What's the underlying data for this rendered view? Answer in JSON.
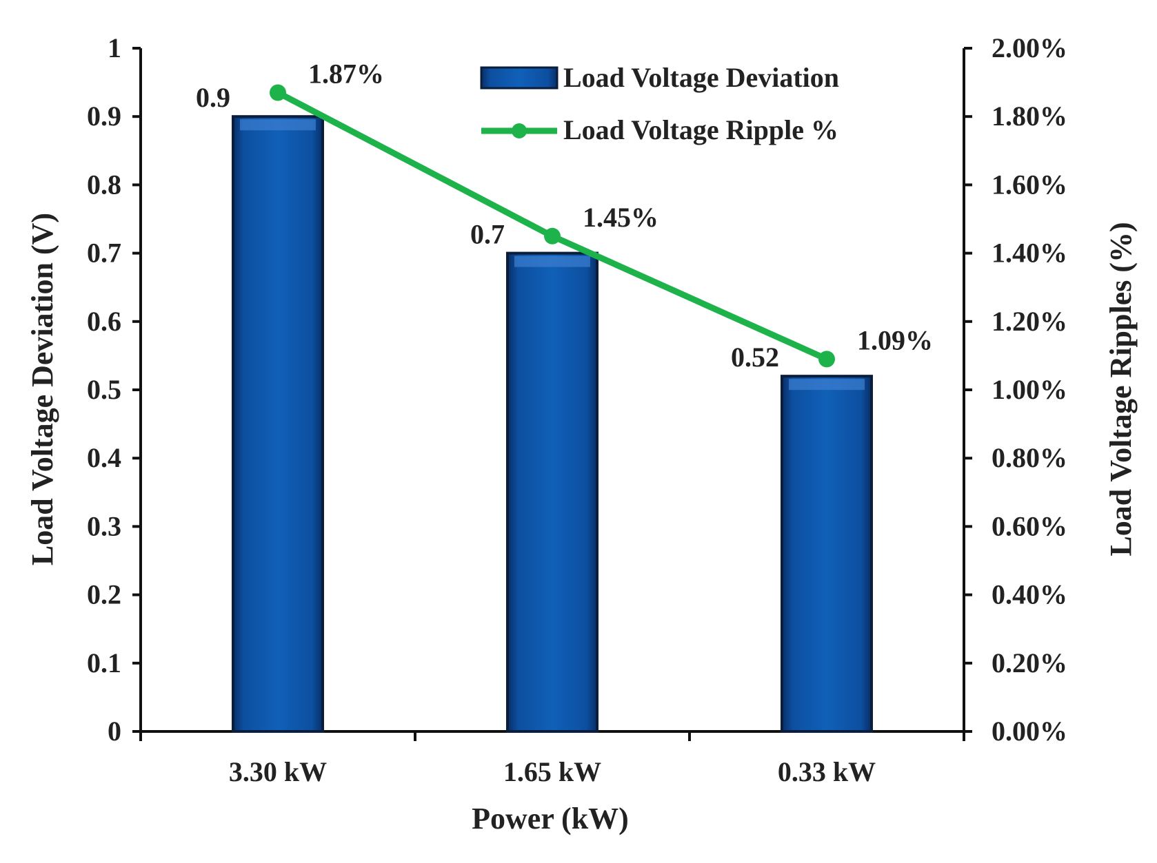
{
  "chart_data": {
    "type": "bar",
    "categories": [
      "3.30 kW",
      "1.65 kW",
      "0.33 kW"
    ],
    "series": [
      {
        "name": "Load Voltage Deviation",
        "kind": "bar",
        "axis": "left",
        "values": [
          0.9,
          0.7,
          0.52
        ],
        "value_labels": [
          "0.9",
          "0.7",
          "0.52"
        ],
        "color": "#0b4f9c"
      },
      {
        "name": "Load Voltage Ripple %",
        "kind": "line",
        "axis": "right",
        "values": [
          1.87,
          1.45,
          1.09
        ],
        "value_labels": [
          "1.87%",
          "1.45%",
          "1.09%"
        ],
        "color": "#1db34a"
      }
    ],
    "xlabel": "Power (kW)",
    "ylabel": "Load Voltage Deviation (V)",
    "y2label": "Load Voltage Ripples (%)",
    "ylim": [
      0,
      1
    ],
    "y2lim": [
      0,
      2
    ],
    "yticks": [
      "0",
      "0.1",
      "0.2",
      "0.3",
      "0.4",
      "0.5",
      "0.6",
      "0.7",
      "0.8",
      "0.9",
      "1"
    ],
    "y2ticks": [
      "0.00%",
      "0.20%",
      "0.40%",
      "0.60%",
      "0.80%",
      "1.00%",
      "1.20%",
      "1.40%",
      "1.60%",
      "1.80%",
      "2.00%"
    ],
    "legend_position": "top-right",
    "grid": false
  }
}
